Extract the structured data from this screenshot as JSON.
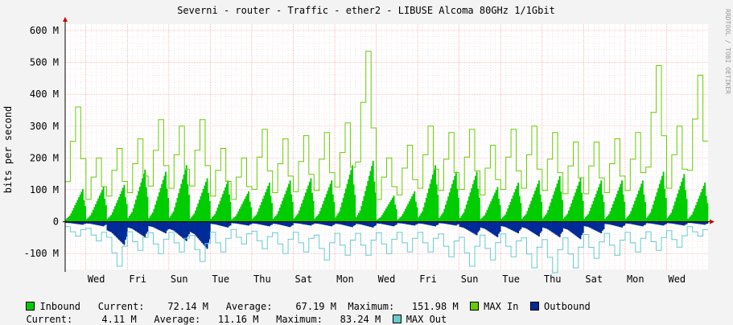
{
  "chart_data": {
    "type": "area",
    "title": "Severni - router - Traffic - ether2 - LIBUSE Alcoma 80GHz 1/1Gbit",
    "ylabel": "bits per second",
    "watermark": "RRDTOOL / TOBI OETIKER",
    "ylim": [
      -150000000,
      620000000
    ],
    "y_ticks": [
      {
        "value": 600000000,
        "label": "600 M"
      },
      {
        "value": 500000000,
        "label": "500 M"
      },
      {
        "value": 400000000,
        "label": "400 M"
      },
      {
        "value": 300000000,
        "label": "300 M"
      },
      {
        "value": 200000000,
        "label": "200 M"
      },
      {
        "value": 100000000,
        "label": "100 M"
      },
      {
        "value": 0,
        "label": "0"
      },
      {
        "value": -100000000,
        "label": "-100 M"
      }
    ],
    "x_ticks": [
      "Wed",
      "Fri",
      "Sun",
      "Tue",
      "Thu",
      "Sat",
      "Mon",
      "Wed",
      "Fri",
      "Sun",
      "Tue",
      "Thu",
      "Sat",
      "Mon",
      "Wed"
    ],
    "grid": true,
    "colors": {
      "inbound": "#00cc00",
      "max_in": "#66cc00",
      "outbound": "#002a97",
      "max_out": "#66cccc",
      "grid": "#ff9999",
      "background": "#ffffff"
    },
    "days": 31,
    "series": [
      {
        "name": "Inbound",
        "unit": "M",
        "daily_avg": [
          75,
          80,
          85,
          120,
          115,
          130,
          100,
          95,
          70,
          90,
          95,
          100,
          95,
          130,
          140,
          60,
          70,
          130,
          115,
          115,
          80,
          90,
          95,
          105,
          100,
          95,
          95,
          95,
          115,
          110,
          90
        ],
        "daily_max": [
          360,
          200,
          230,
          260,
          320,
          300,
          320,
          230,
          200,
          290,
          260,
          270,
          280,
          310,
          535,
          200,
          240,
          300,
          280,
          290,
          240,
          290,
          300,
          280,
          250,
          250,
          260,
          280,
          490,
          300,
          460
        ]
      },
      {
        "name": "Outbound",
        "unit": "M",
        "daily_avg": [
          -8,
          -12,
          -60,
          -40,
          -30,
          -50,
          -70,
          -15,
          -10,
          -12,
          -14,
          -10,
          -12,
          -14,
          -15,
          -12,
          -10,
          -12,
          -10,
          -35,
          -40,
          -30,
          -38,
          -40,
          -45,
          -30,
          -15,
          -12,
          -10,
          -10,
          -8
        ],
        "daily_max": [
          -45,
          -60,
          -140,
          -90,
          -100,
          -95,
          -125,
          -95,
          -70,
          -85,
          -100,
          -95,
          -120,
          -105,
          -105,
          -100,
          -95,
          -95,
          -110,
          -140,
          -120,
          -110,
          -145,
          -160,
          -145,
          -115,
          -105,
          -95,
          -90,
          -80,
          -45
        ]
      }
    ],
    "legend": {
      "inbound_label": "Inbound",
      "current_label": "Current:",
      "average_label": "Average:",
      "maximum_label": "Maximum:",
      "inbound_current": "72.14 M",
      "inbound_average": "67.19 M",
      "inbound_maximum": "151.98 M",
      "max_in_label": "MAX In",
      "outbound_label": "Outbound",
      "outbound_current": "4.11 M",
      "outbound_average": "11.16 M",
      "outbound_maximum": "83.24 M",
      "max_out_label": "MAX Out"
    }
  }
}
